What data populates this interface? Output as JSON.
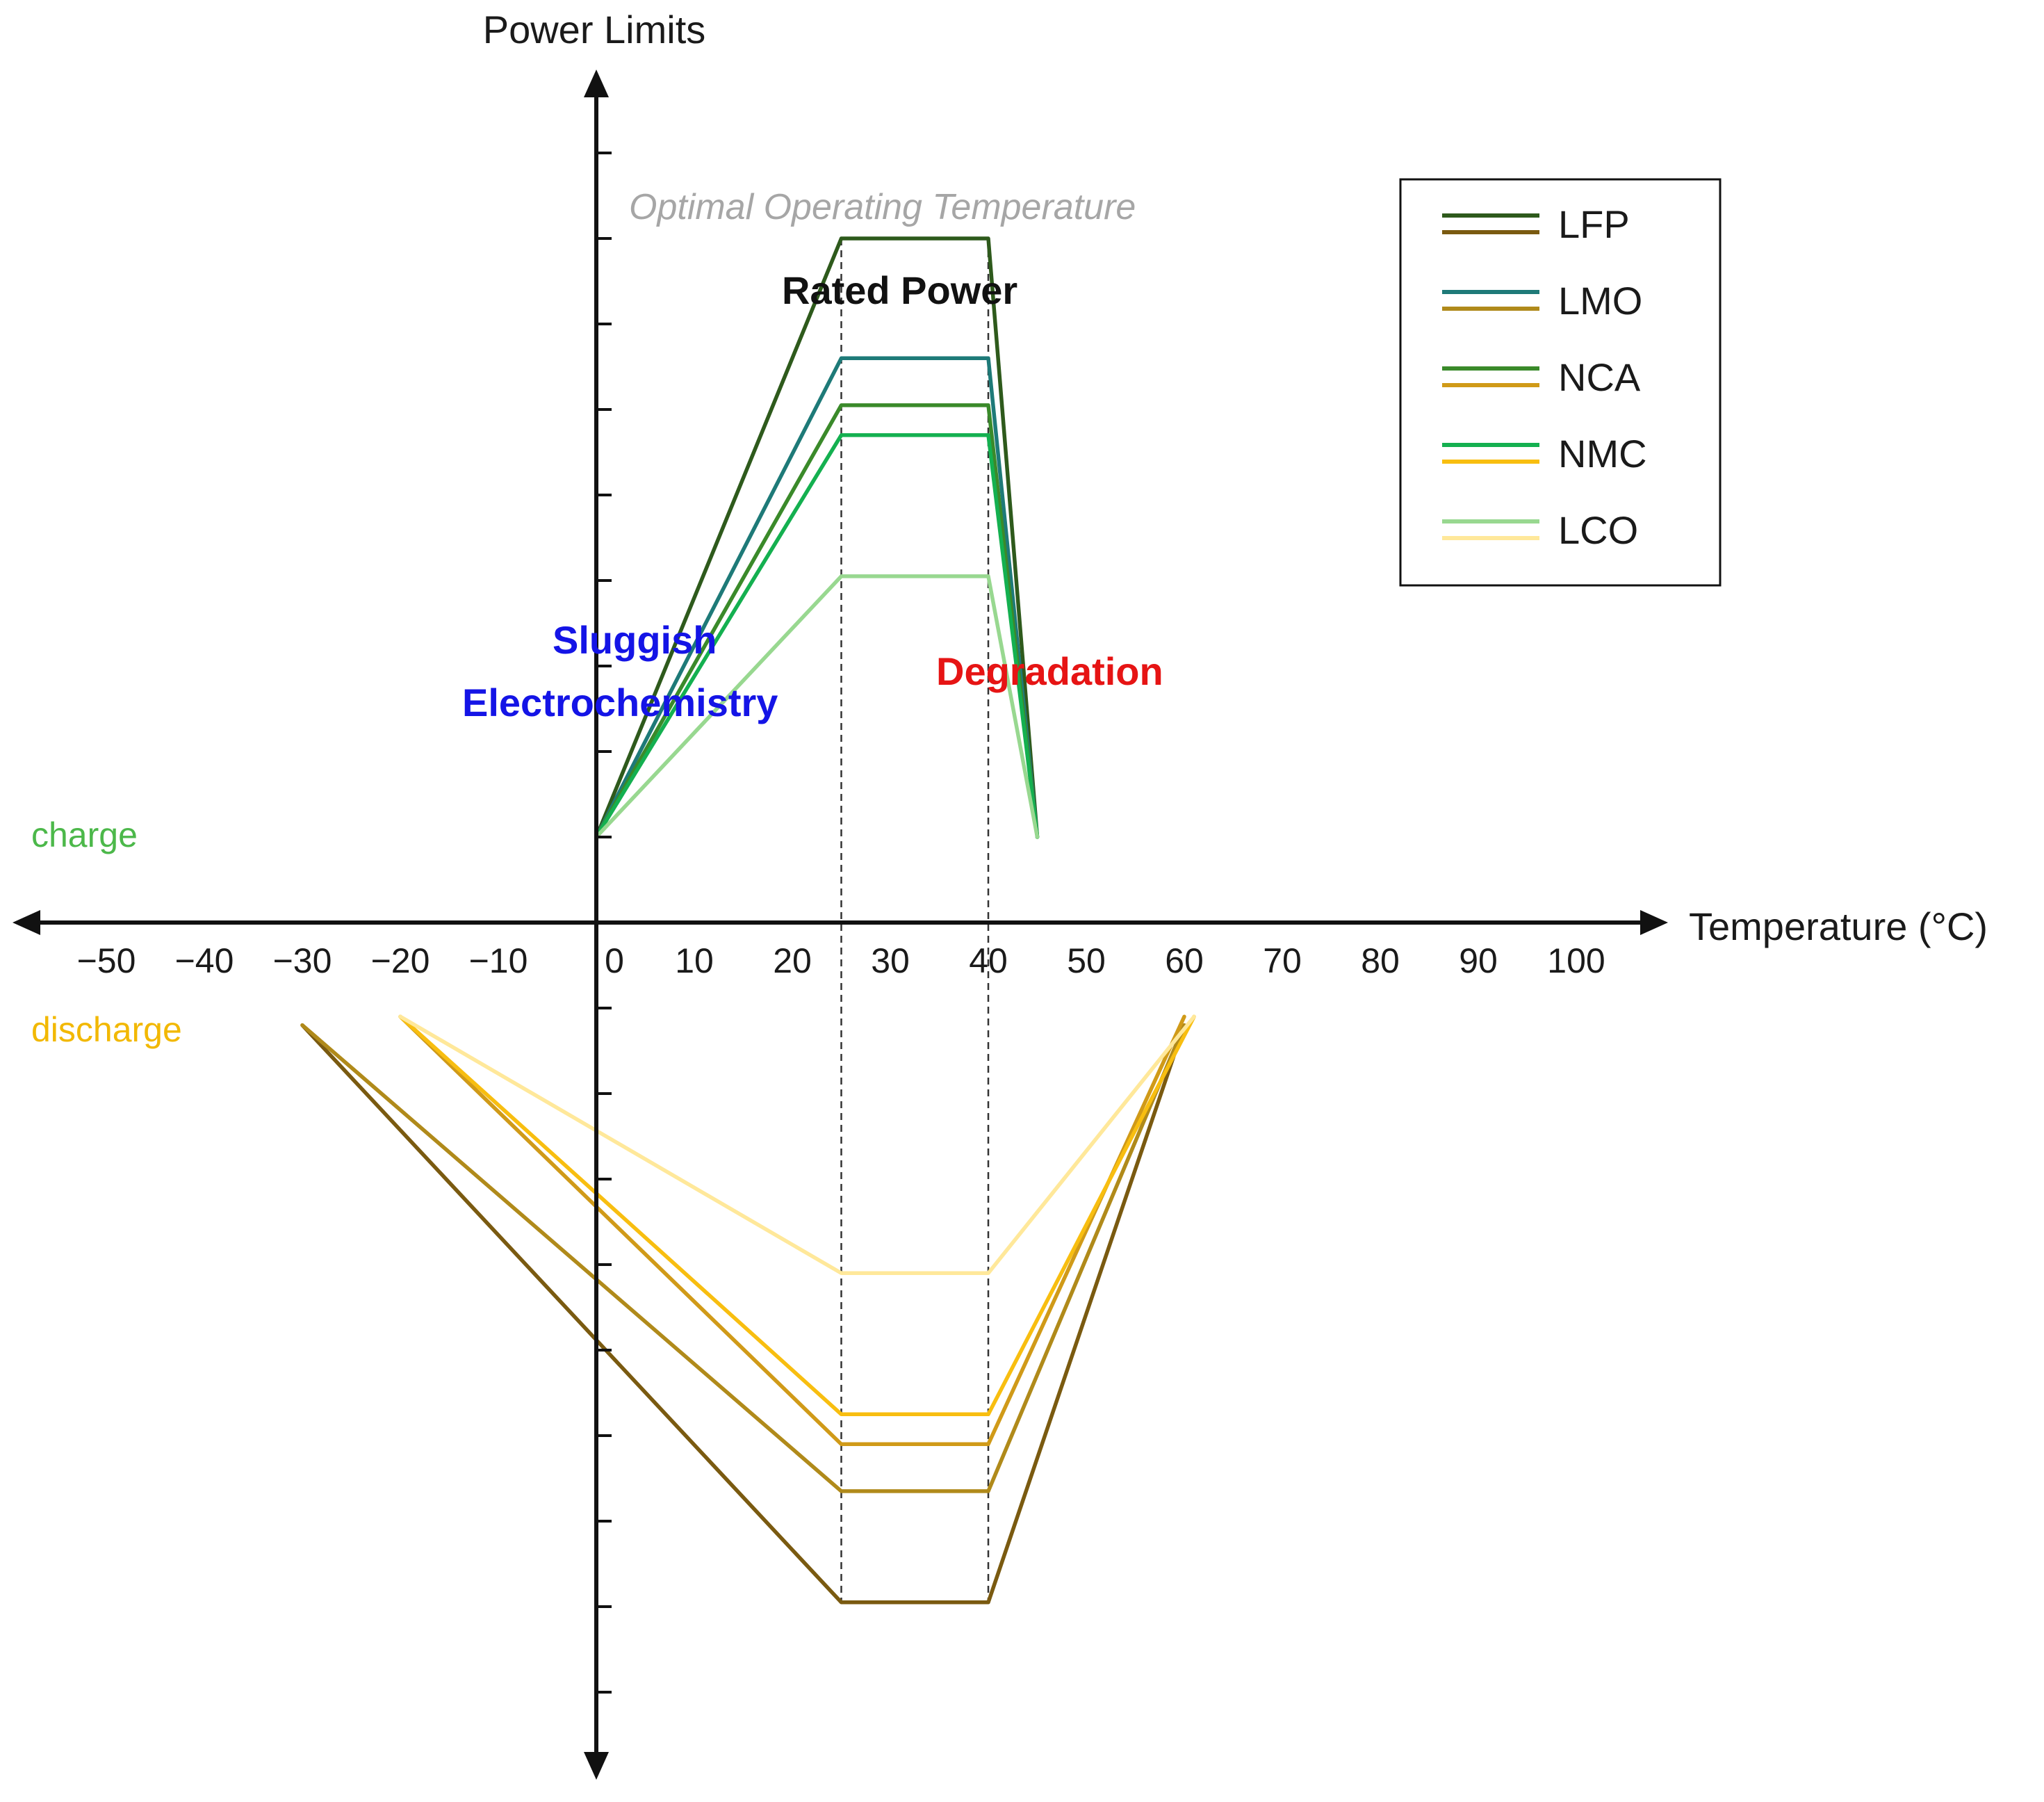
{
  "colors": {
    "axis": "#111111",
    "guide": "#333333",
    "sluggish": "#1414e6",
    "degradation": "#e61414",
    "optimal": "#a6a6a6",
    "rated": "#111111",
    "charge_label": "#4cb84a",
    "discharge_label": "#f2b800",
    "legend_border": "#111111"
  },
  "chart_data": {
    "type": "line",
    "title": "",
    "xlabel": "Temperature (°C)",
    "ylabel": "Power Limits",
    "xlim": [
      -60,
      110
    ],
    "ylim": [
      -10,
      10.5
    ],
    "x_ticks": [
      -50,
      -40,
      -30,
      -20,
      -10,
      0,
      10,
      20,
      30,
      40,
      50,
      60,
      70,
      80,
      90,
      100
    ],
    "x_tick_labels": [
      "−50",
      "−40",
      "−30",
      "−20",
      "−10",
      "0",
      "10",
      "20",
      "30",
      "40",
      "50",
      "60",
      "70",
      "80",
      "90",
      "100"
    ],
    "y_ticks": [
      -9,
      -8,
      -7,
      -6,
      -5,
      -4,
      -3,
      -2,
      -1,
      1,
      2,
      3,
      4,
      5,
      6,
      7,
      8,
      9
    ],
    "grid": false,
    "y_tick_labels": [],
    "guide_lines_x": [
      25,
      40
    ],
    "legend": {
      "position": "top-right",
      "entries": [
        "LFP",
        "LMO",
        "NCA",
        "NMC",
        "LCO"
      ]
    },
    "charge_label": "charge",
    "discharge_label": "discharge",
    "annotations": {
      "optimal": "Optimal Operating Temperature",
      "rated": "Rated Power",
      "sluggish_line1": "Sluggish",
      "sluggish_line2": "Electrochemistry",
      "degradation": "Degradation"
    },
    "series": [
      {
        "name": "LFP charge",
        "legend": "LFP",
        "mode": "charge",
        "color": "#2e5a1c",
        "x": [
          0,
          25,
          40,
          45
        ],
        "y": [
          1,
          8,
          8,
          1
        ]
      },
      {
        "name": "LMO charge",
        "legend": "LMO",
        "mode": "charge",
        "color": "#1e7a78",
        "x": [
          0,
          25,
          40,
          45
        ],
        "y": [
          1,
          6.6,
          6.6,
          1
        ]
      },
      {
        "name": "NCA charge",
        "legend": "NCA",
        "mode": "charge",
        "color": "#3a8a2a",
        "x": [
          0,
          25,
          40,
          45
        ],
        "y": [
          1,
          6.05,
          6.05,
          1
        ]
      },
      {
        "name": "NMC charge",
        "legend": "NMC",
        "mode": "charge",
        "color": "#14b050",
        "x": [
          0,
          25,
          40,
          45
        ],
        "y": [
          1,
          5.7,
          5.7,
          1
        ]
      },
      {
        "name": "LCO charge",
        "legend": "LCO",
        "mode": "charge",
        "color": "#98d890",
        "x": [
          0,
          25,
          40,
          45
        ],
        "y": [
          1,
          4.05,
          4.05,
          1
        ]
      },
      {
        "name": "LFP discharge",
        "legend": "LFP",
        "mode": "discharge",
        "color": "#7a5a10",
        "x": [
          -30,
          25,
          40,
          60
        ],
        "y": [
          -1.2,
          -7.95,
          -7.95,
          -1.2
        ]
      },
      {
        "name": "LMO discharge",
        "legend": "LMO",
        "mode": "discharge",
        "color": "#b08a1a",
        "x": [
          -30,
          25,
          40,
          60
        ],
        "y": [
          -1.2,
          -6.65,
          -6.65,
          -1.2
        ]
      },
      {
        "name": "NCA discharge",
        "legend": "NCA",
        "mode": "discharge",
        "color": "#d09a18",
        "x": [
          -20,
          25,
          40,
          60
        ],
        "y": [
          -1.1,
          -6.1,
          -6.1,
          -1.1
        ]
      },
      {
        "name": "NMC discharge",
        "legend": "NMC",
        "mode": "discharge",
        "color": "#f8be10",
        "x": [
          -20,
          25,
          40,
          61
        ],
        "y": [
          -1.1,
          -5.75,
          -5.75,
          -1.1
        ]
      },
      {
        "name": "LCO discharge",
        "legend": "LCO",
        "mode": "discharge",
        "color": "#ffe89a",
        "x": [
          -20,
          25,
          40,
          61
        ],
        "y": [
          -1.1,
          -4.1,
          -4.1,
          -1.1
        ]
      }
    ]
  }
}
